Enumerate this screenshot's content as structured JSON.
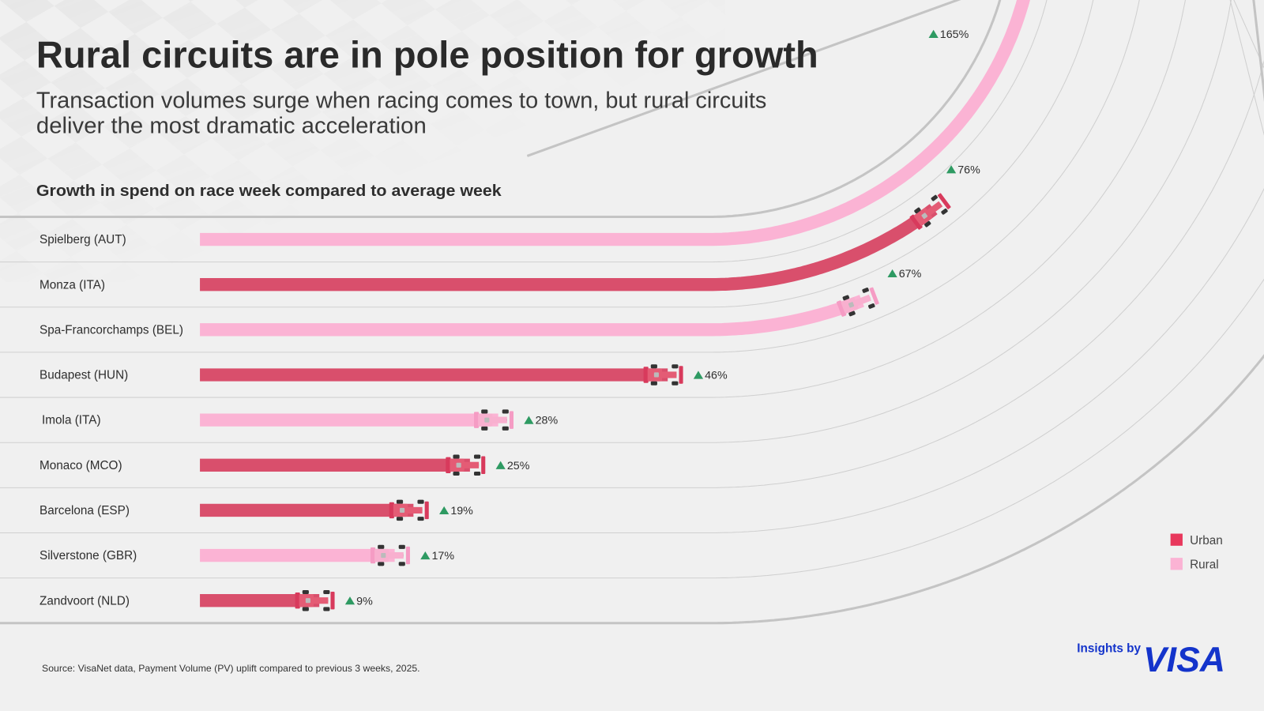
{
  "header": {
    "title": "Rural circuits are in pole position for growth",
    "subtitle_line1": "Transaction volumes surge when racing comes to town, but rural circuits",
    "subtitle_line2": "deliver the most dramatic acceleration"
  },
  "chart_data": {
    "type": "bar",
    "title": "Growth in spend on race week compared to average week",
    "categories": [
      "Spielberg (AUT)",
      "Monza (ITA)",
      "Spa-Francorchamps (BEL)",
      "Budapest (HUN)",
      "Imola (ITA)",
      "Monaco (MCO)",
      "Barcelona (ESP)",
      "Silverstone (GBR)",
      "Zandvoort (NLD)"
    ],
    "values": [
      165,
      76,
      67,
      46,
      28,
      25,
      19,
      17,
      9
    ],
    "value_labels": [
      "165%",
      "76%",
      "67%",
      "46%",
      "28%",
      "25%",
      "19%",
      "17%",
      "9%"
    ],
    "types": [
      "Rural",
      "Urban",
      "Rural",
      "Urban",
      "Rural",
      "Urban",
      "Urban",
      "Rural",
      "Urban"
    ],
    "unit": "%",
    "orientation": "horizontal",
    "legend": {
      "position": "bottom-right",
      "items": [
        {
          "name": "Urban",
          "color": "#e8385c"
        },
        {
          "name": "Rural",
          "color": "#fbb3d4"
        }
      ]
    },
    "colors": {
      "Urban": "#d94f6c",
      "Rural": "#fbb3d4",
      "increase_marker": "#2e9a62"
    },
    "marker_icon": "race-car-icon",
    "grid": true
  },
  "footer": {
    "source": "Source: VisaNet data, Payment Volume (PV) uplift compared to previous 3 weeks, 2025.",
    "brand_prefix": "Insights by",
    "brand_logo": "VISA"
  }
}
